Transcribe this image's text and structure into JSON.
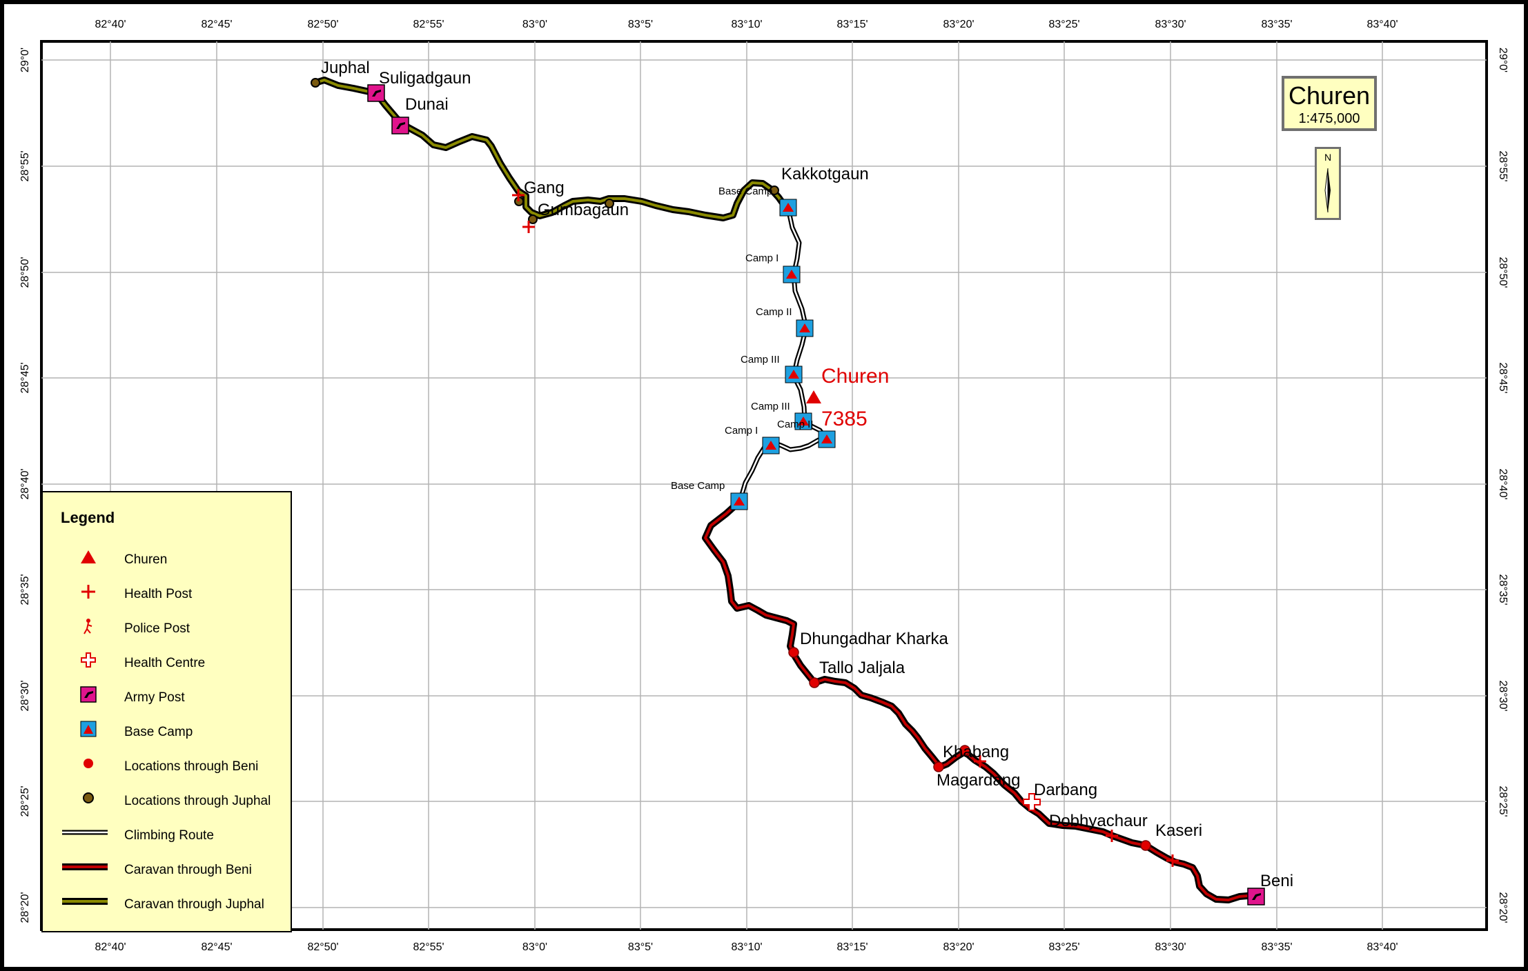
{
  "map": {
    "title": "Churen",
    "scale": "1:475,000",
    "north_label": "N",
    "colors": {
      "frame": "#000000",
      "grid": "#b4b4b4",
      "beni_route": "#c00000",
      "juphal_route": "#8a8a00",
      "marker_red": "#e00000",
      "army_post": "#e0148c",
      "base_camp": "#1ea0e0",
      "juphal_location": "#7a5a10",
      "legend_bg": "#ffffc0"
    }
  },
  "axes": {
    "lon_labels": [
      "82°40'",
      "82°45'",
      "82°50'",
      "82°55'",
      "83°0'",
      "83°5'",
      "83°10'",
      "83°15'",
      "83°20'",
      "83°25'",
      "83°30'",
      "83°35'",
      "83°40'"
    ],
    "lat_labels": [
      "29°0'",
      "28°55'",
      "28°50'",
      "28°45'",
      "28°40'",
      "28°35'",
      "28°30'",
      "28°25'",
      "28°20'"
    ]
  },
  "peak": {
    "name": "Churen",
    "elevation": "7385",
    "icon": "triangle-icon"
  },
  "places": [
    "Juphal",
    "Suligadgaun",
    "Dunai",
    "Gang",
    "Gumbagaun",
    "Kakkotgaun",
    "Dhungadhar Kharka",
    "Tallo Jaljala",
    "Khabang",
    "Magardang",
    "Darbang",
    "Dobhyachaur",
    "Kaseri",
    "Beni"
  ],
  "camps": [
    "Base Camp",
    "Camp I",
    "Camp II",
    "Camp III",
    "Camp III",
    "Camp II",
    "Camp I",
    "Base Camp"
  ],
  "legend": {
    "title": "Legend",
    "items": [
      {
        "label": "Churen",
        "icon": "triangle-icon"
      },
      {
        "label": "Health Post",
        "icon": "plus-icon"
      },
      {
        "label": "Police Post",
        "icon": "police-icon"
      },
      {
        "label": "Health Centre",
        "icon": "outline-cross-icon"
      },
      {
        "label": "Army Post",
        "icon": "army-post-icon"
      },
      {
        "label": "Base Camp",
        "icon": "tent-icon"
      },
      {
        "label": "Locations through Beni",
        "icon": "red-dot-icon"
      },
      {
        "label": "Locations through Juphal",
        "icon": "brown-dot-icon"
      },
      {
        "label": "Climbing Route",
        "icon": "climbing-route-line"
      },
      {
        "label": "Caravan through Beni",
        "icon": "beni-route-line"
      },
      {
        "label": "Caravan through Juphal",
        "icon": "juphal-route-line"
      }
    ]
  }
}
